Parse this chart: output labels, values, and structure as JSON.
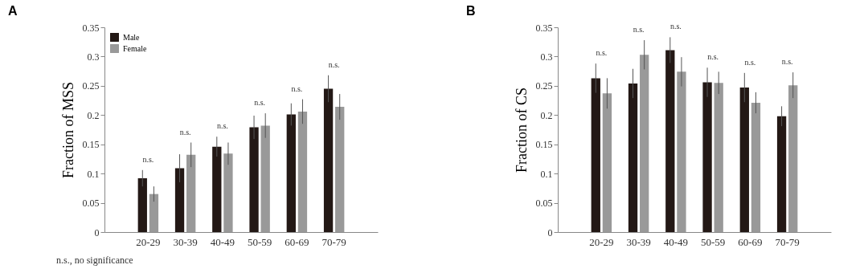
{
  "chart_data": [
    {
      "type": "bar",
      "title": "A",
      "ylabel": "Fraction of MSS",
      "categories": [
        "20-29",
        "30-39",
        "40-49",
        "50-59",
        "60-69",
        "70-79"
      ],
      "series": [
        {
          "name": "Male",
          "color": "#231815",
          "values": [
            0.092,
            0.109,
            0.146,
            0.179,
            0.201,
            0.245
          ],
          "errors": [
            0.014,
            0.024,
            0.017,
            0.02,
            0.019,
            0.023
          ]
        },
        {
          "name": "Female",
          "color": "#999999",
          "values": [
            0.065,
            0.132,
            0.134,
            0.182,
            0.206,
            0.214
          ],
          "errors": [
            0.013,
            0.021,
            0.019,
            0.021,
            0.021,
            0.022
          ]
        }
      ],
      "ylim": [
        0,
        0.35
      ],
      "yticks": [
        0,
        0.05,
        0.1,
        0.15,
        0.2,
        0.25,
        0.3,
        0.35
      ],
      "grid": false,
      "legend": "top left",
      "annotations": [
        "n.s.",
        "n.s.",
        "n.s.",
        "n.s.",
        "n.s.",
        "n.s.",
        "n.s., no significance"
      ]
    },
    {
      "type": "bar",
      "title": "B",
      "ylabel": "Fraction of CS",
      "categories": [
        "20-29",
        "30-39",
        "40-49",
        "50-59",
        "60-69",
        "70-79"
      ],
      "series": [
        {
          "color": "#231815",
          "values": [
            0.263,
            0.254,
            0.311,
            0.256,
            0.247,
            0.198
          ],
          "errors": [
            0.025,
            0.025,
            0.022,
            0.025,
            0.025,
            0.017
          ]
        },
        {
          "color": "#999999",
          "values": [
            0.237,
            0.303,
            0.274,
            0.255,
            0.221,
            0.251
          ],
          "errors": [
            0.026,
            0.025,
            0.025,
            0.019,
            0.018,
            0.022
          ]
        }
      ],
      "ylim": [
        0,
        0.35
      ],
      "yticks": [
        0,
        0.05,
        0.1,
        0.15,
        0.2,
        0.25,
        0.3,
        0.35
      ],
      "grid": false,
      "annotations": [
        "n.s.",
        "n.s.",
        "n.s.",
        "n.s.",
        "n.s.",
        "n.s."
      ]
    }
  ]
}
